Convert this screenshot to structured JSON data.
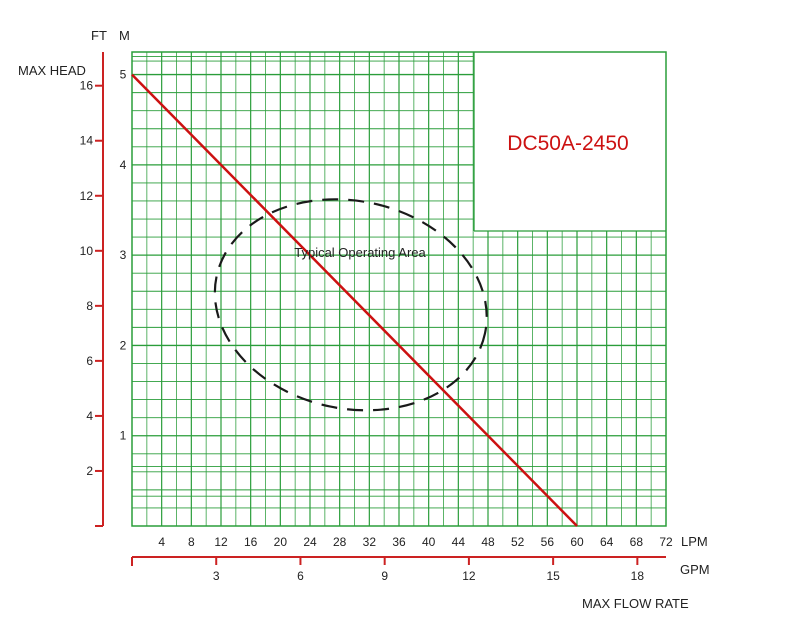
{
  "chart_data": {
    "type": "line",
    "title": "DC50A-2450",
    "annotation": "Typical Operating Area",
    "x_axis": {
      "label": "MAX FLOW RATE",
      "primary_unit": "LPM",
      "primary_range": [
        0,
        72
      ],
      "primary_ticks": [
        4,
        8,
        12,
        16,
        20,
        24,
        28,
        32,
        36,
        40,
        44,
        48,
        52,
        56,
        60,
        64,
        68,
        72
      ],
      "secondary_unit": "GPM",
      "secondary_ticks": [
        3,
        6,
        9,
        12,
        15,
        18
      ]
    },
    "y_axis": {
      "label": "MAX HEAD",
      "ft_unit": "FT",
      "ft_ticks": [
        2,
        4,
        6,
        8,
        10,
        12,
        14,
        16
      ],
      "m_unit": "M",
      "m_range": [
        0,
        5.25
      ],
      "m_ticks": [
        1,
        2,
        3,
        4,
        5
      ]
    },
    "series": [
      {
        "x_lpm": [
          0,
          60
        ],
        "y_m": [
          5,
          0
        ]
      }
    ],
    "operating_area": {
      "lpm_range": [
        11,
        48
      ],
      "m_range": [
        1.3,
        3.6
      ]
    },
    "grid": true,
    "colors": {
      "curve": "#cc1111",
      "grid": "#2a9d3a",
      "axis": "#cc2222",
      "title": "#cc1111"
    }
  }
}
